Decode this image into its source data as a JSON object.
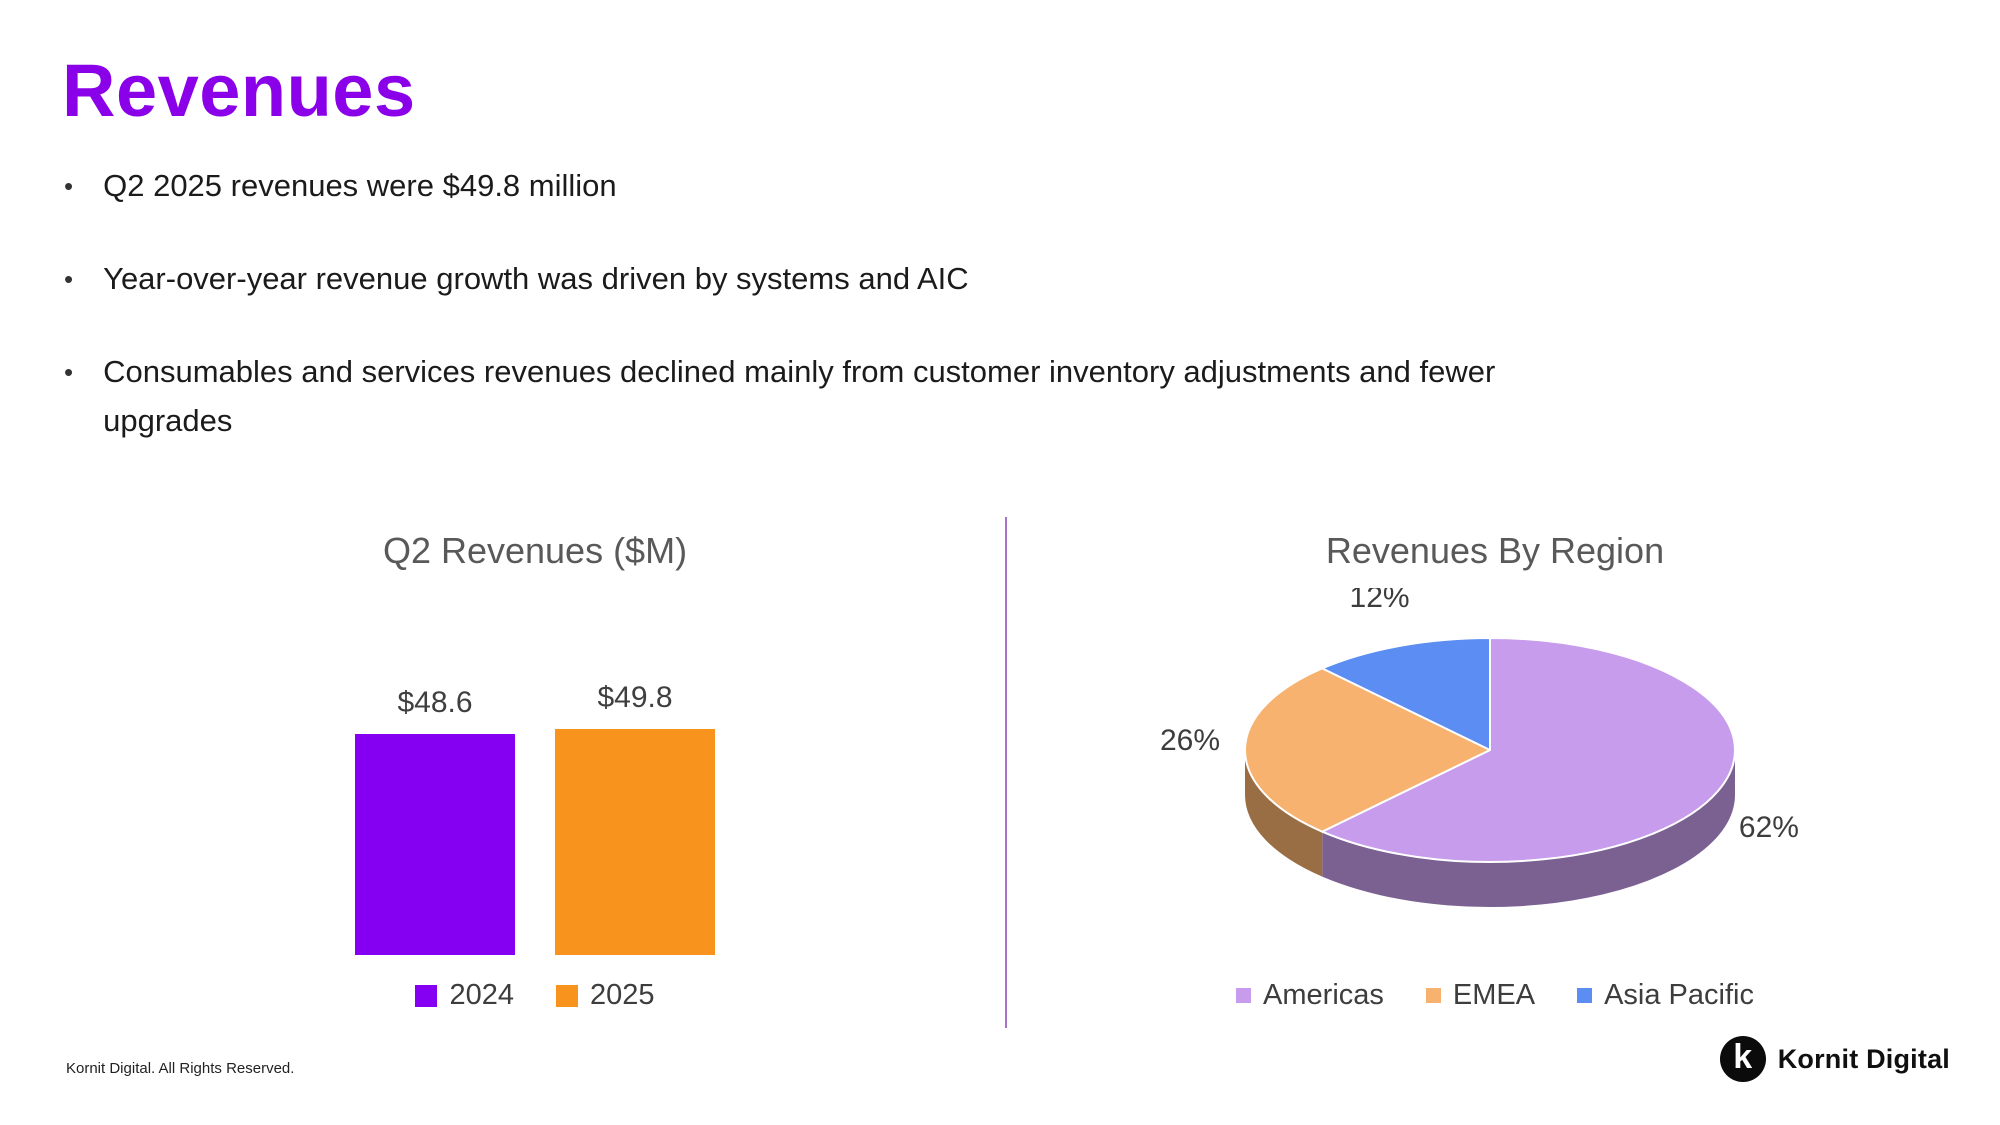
{
  "header": {
    "title": "Revenues",
    "accent_color": "#8a00e8"
  },
  "glyphs": {
    "bullet": "•"
  },
  "bullets": [
    "Q2 2025 revenues were $49.8 million",
    "Year-over-year revenue growth was driven by systems and AIC",
    "Consumables and services revenues declined mainly from customer inventory adjustments and fewer upgrades"
  ],
  "chart_data": [
    {
      "type": "bar",
      "title": "Q2 Revenues ($M)",
      "categories": [
        "2024",
        "2025"
      ],
      "values": [
        48.6,
        49.8
      ],
      "value_labels": [
        "$48.6",
        "$49.8"
      ],
      "colors": [
        "#8500f2",
        "#f8941e"
      ],
      "ylim": [
        0,
        55
      ],
      "grid": false,
      "legend_position": "bottom"
    },
    {
      "type": "pie",
      "title": "Revenues By Region",
      "labels": [
        "Americas",
        "EMEA",
        "Asia Pacific"
      ],
      "values": [
        62,
        26,
        12
      ],
      "value_labels": [
        "62%",
        "26%",
        "12%"
      ],
      "colors": [
        "#c79cec",
        "#f6b26e",
        "#5b8df2"
      ],
      "style": "3d",
      "start_angle_deg": 0,
      "direction": "clockwise",
      "legend_position": "bottom"
    }
  ],
  "footer": {
    "copyright": "Kornit Digital. All Rights Reserved.",
    "logo_mark": "k",
    "logo_text": "Kornit Digital"
  }
}
